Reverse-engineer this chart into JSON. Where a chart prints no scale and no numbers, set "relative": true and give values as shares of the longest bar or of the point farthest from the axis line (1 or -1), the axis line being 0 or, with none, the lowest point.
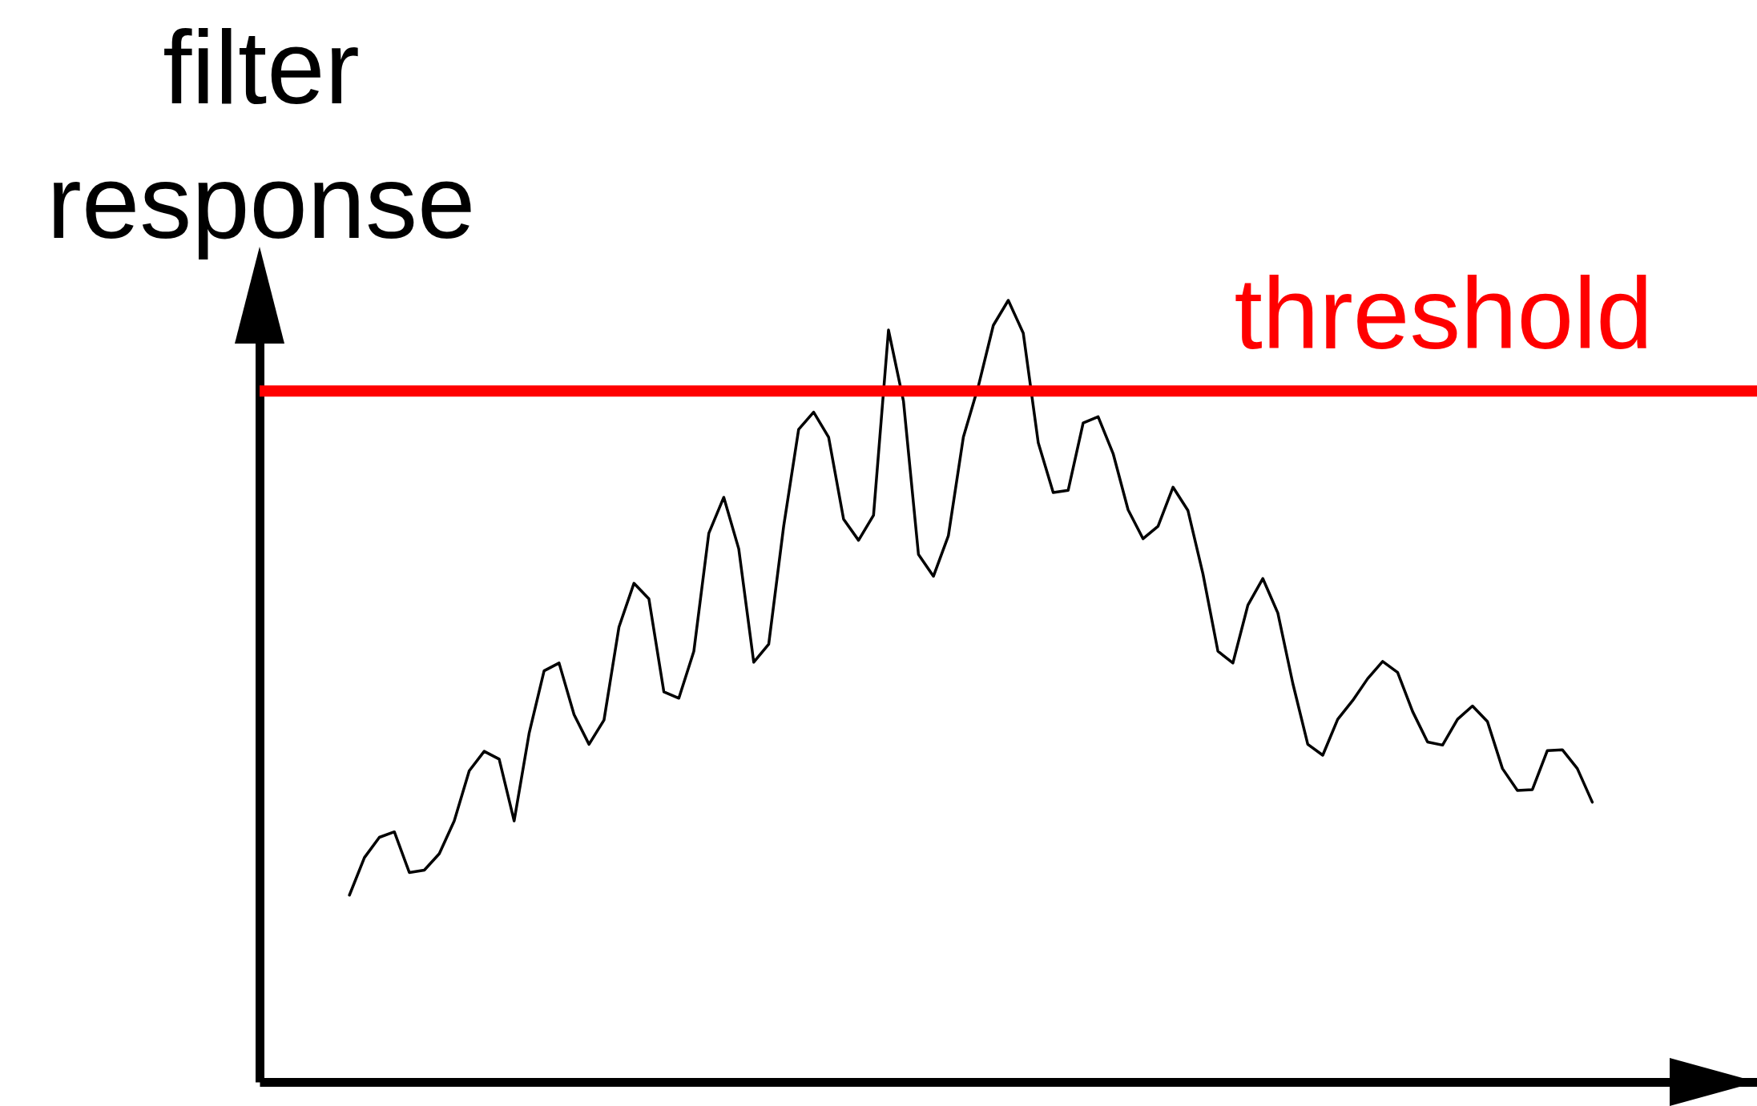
{
  "chart_data": {
    "type": "line",
    "ylabel": "filter response",
    "relative": true,
    "categories": [
      null,
      null,
      null,
      null,
      null,
      null,
      null,
      null,
      null,
      null,
      null,
      null,
      null,
      null,
      null,
      null,
      null,
      null,
      null,
      null,
      null,
      null,
      null,
      null,
      null,
      null,
      null,
      null,
      null,
      null,
      null,
      null,
      null,
      null,
      null,
      null,
      null,
      null,
      null,
      null,
      null,
      null,
      null,
      null,
      null,
      null,
      null,
      null,
      null,
      null,
      null,
      null,
      null,
      null,
      null,
      null,
      null,
      null,
      null,
      null,
      null,
      null,
      null,
      null,
      null,
      null,
      null,
      null,
      null,
      null,
      null,
      null,
      null,
      null,
      null,
      null,
      null,
      null,
      null,
      null,
      null,
      null,
      null,
      null
    ],
    "series": [
      {
        "color": "#000000",
        "values": [
          0.239,
          0.287,
          0.313,
          0.32,
          0.268,
          0.271,
          0.292,
          0.334,
          0.398,
          0.423,
          0.413,
          0.334,
          0.446,
          0.526,
          0.536,
          0.47,
          0.432,
          0.463,
          0.582,
          0.638,
          0.618,
          0.499,
          0.491,
          0.551,
          0.702,
          0.748,
          0.682,
          0.537,
          0.56,
          0.711,
          0.835,
          0.857,
          0.825,
          0.72,
          0.693,
          0.725,
          0.962,
          0.871,
          0.675,
          0.647,
          0.699,
          0.825,
          0.89,
          0.968,
          1,
          0.958,
          0.818,
          0.754,
          0.757,
          0.843,
          0.851,
          0.804,
          0.732,
          0.695,
          0.711,
          0.761,
          0.731,
          0.65,
          0.551,
          0.536,
          0.61,
          0.644,
          0.6,
          0.51,
          0.432,
          0.418,
          0.464,
          0.488,
          0.516,
          0.538,
          0.524,
          0.474,
          0.435,
          0.431,
          0.464,
          0.481,
          0.461,
          0.401,
          0.373,
          0.374,
          0.424,
          0.425,
          0.401,
          0.358
        ]
      }
    ],
    "ref_lines": [
      {
        "axis": "y",
        "value": 0.884,
        "label": "threshold",
        "color": "#ff0000"
      }
    ]
  }
}
